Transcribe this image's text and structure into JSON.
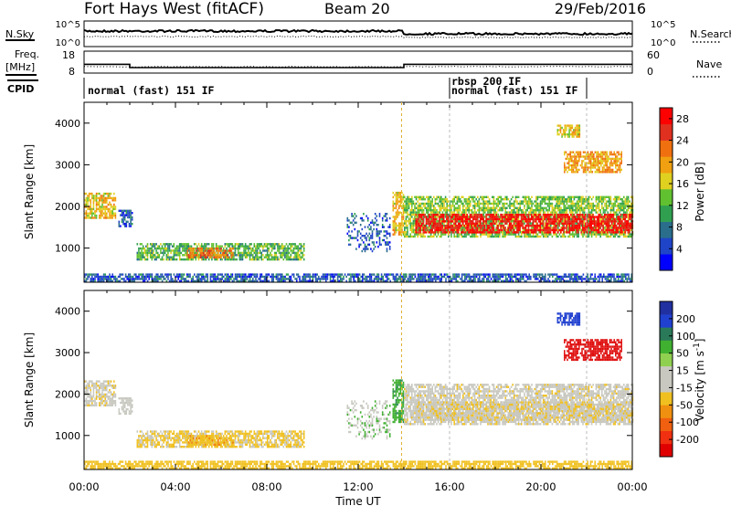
{
  "header": {
    "radar": "Fort Hays West (fitACF)",
    "beam": "Beam 20",
    "date": "29/Feb/2016"
  },
  "summary": {
    "nsky_label": "N.Sky",
    "nsearch_label": "N.Search",
    "noise_ticks": [
      "10^5",
      "10^0"
    ],
    "freq_label_1": "Freq.",
    "freq_label_2": "[MHz]",
    "freq_ticks": [
      "18",
      "8"
    ],
    "nave_label": "Nave",
    "nave_ticks": [
      "60",
      "0"
    ],
    "cpid_label": "CPID"
  },
  "cpid_segments": [
    {
      "label": "normal (fast) 151 IF",
      "start_hour": 0,
      "end_hour": 16
    },
    {
      "label": "rbsp 200 IF",
      "start_hour": 16,
      "end_hour": 17
    },
    {
      "label": "normal (fast) 151 IF",
      "start_hour": 17,
      "end_hour": 22
    }
  ],
  "axes": {
    "xlabel": "Time UT",
    "ylabel": "Slant Range [km]",
    "x_ticks": [
      "00:00",
      "04:00",
      "08:00",
      "12:00",
      "16:00",
      "20:00",
      "00:00"
    ],
    "y_ticks": [
      "1000",
      "2000",
      "3000",
      "4000"
    ],
    "xlim_hours": [
      0,
      24
    ],
    "ylim_km": [
      180,
      4500
    ]
  },
  "colorbars": {
    "power": {
      "label": "Power [dB]",
      "ticks": [
        "4",
        "8",
        "12",
        "16",
        "20",
        "24",
        "28"
      ],
      "colors": [
        "#0000ff",
        "#2044c8",
        "#2a6e8c",
        "#30a050",
        "#60c030",
        "#e0d020",
        "#f0a010",
        "#f07010",
        "#e03020",
        "#ff0000"
      ]
    },
    "velocity": {
      "label_prefix": "Velocity [m s",
      "label_sup": "-1",
      "label_suffix": "]",
      "ticks": [
        "200",
        "100",
        "50",
        "15",
        "-15",
        "-50",
        "-100",
        "-200"
      ],
      "colors": [
        "#2030a0",
        "#2040d0",
        "#2a7a5a",
        "#40b030",
        "#90d050",
        "#c8c8c0",
        "#c8c8c0",
        "#f0c020",
        "#f09010",
        "#f06010",
        "#f03010",
        "#e00000"
      ]
    }
  },
  "chart_data": {
    "type": "heatmap",
    "title": "Fort Hays West (fitACF)",
    "xlabel": "Time UT",
    "ylabel": "Slant Range [km]",
    "xlim_hours": [
      0,
      24
    ],
    "ylim_km": [
      180,
      4500
    ],
    "panels": [
      {
        "name": "Power",
        "unit": "dB",
        "range": [
          0,
          30
        ]
      },
      {
        "name": "Velocity",
        "unit": "m s-1",
        "range": [
          -200,
          200
        ]
      }
    ],
    "frequency_mhz": [
      {
        "start_hour": 0,
        "end_hour": 2,
        "value": 12
      },
      {
        "start_hour": 2,
        "end_hour": 14,
        "value": 10.5
      },
      {
        "start_hour": 14,
        "end_hour": 24,
        "value": 12
      }
    ],
    "echo_regions": [
      {
        "start_hour": 0.0,
        "end_hour": 1.4,
        "range_km": [
          1700,
          2300
        ],
        "power_db": 18,
        "velocity": -5
      },
      {
        "start_hour": 1.5,
        "end_hour": 2.1,
        "range_km": [
          1500,
          1900
        ],
        "power_db": 6,
        "velocity": 0
      },
      {
        "start_hour": 2.3,
        "end_hour": 9.6,
        "range_km": [
          700,
          1100
        ],
        "power_db": 12,
        "velocity": -20
      },
      {
        "start_hour": 4.5,
        "end_hour": 6.5,
        "range_km": [
          750,
          1000
        ],
        "power_db": 22,
        "velocity": -40
      },
      {
        "start_hour": 11.5,
        "end_hour": 13.4,
        "range_km": [
          900,
          1800
        ],
        "power_db": 6,
        "velocity": 10
      },
      {
        "start_hour": 13.5,
        "end_hour": 14.0,
        "range_km": [
          1300,
          2300
        ],
        "power_db": 18,
        "velocity": 40
      },
      {
        "start_hour": 14.0,
        "end_hour": 24.0,
        "range_km": [
          1250,
          2200
        ],
        "power_db": 14,
        "velocity": -5
      },
      {
        "start_hour": 14.5,
        "end_hour": 24.0,
        "range_km": [
          1350,
          1800
        ],
        "power_db": 28,
        "velocity": -10
      },
      {
        "start_hour": 21.0,
        "end_hour": 23.5,
        "range_km": [
          2800,
          3300
        ],
        "power_db": 20,
        "velocity": -150
      },
      {
        "start_hour": 20.7,
        "end_hour": 21.7,
        "range_km": [
          3650,
          3950
        ],
        "power_db": 18,
        "velocity": 120
      },
      {
        "start_hour": 0.0,
        "end_hour": 24.0,
        "range_km": [
          180,
          350
        ],
        "power_db": 6,
        "velocity": -30
      }
    ]
  }
}
